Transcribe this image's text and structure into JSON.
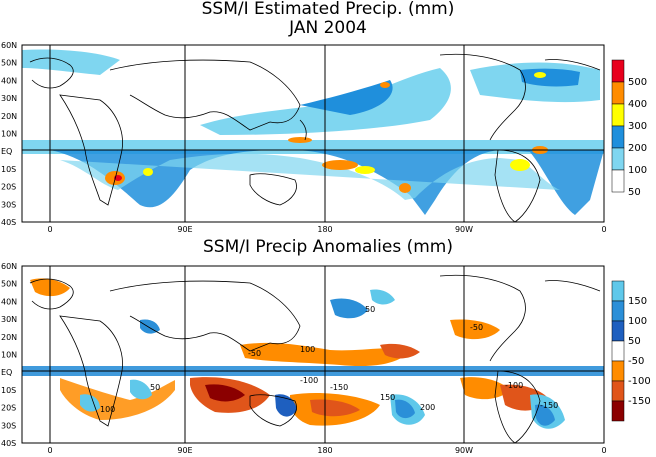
{
  "top_panel": {
    "title_line1": "SSM/I Estimated Precip. (mm)",
    "title_line2": "JAN 2004",
    "lat_labels": [
      "60N",
      "50N",
      "40N",
      "30N",
      "20N",
      "10N",
      "EQ",
      "10S",
      "20S",
      "30S",
      "40S"
    ],
    "lon_labels": [
      "0",
      "90E",
      "180",
      "90W",
      "0"
    ],
    "legend": {
      "labels": [
        "500",
        "400",
        "300",
        "200",
        "100",
        "50"
      ],
      "colors": [
        "#e8001c",
        "#ff8c00",
        "#ffff00",
        "#1f8fdc",
        "#7fd6f0",
        "#ffffff"
      ]
    }
  },
  "bottom_panel": {
    "title": "SSM/I Precip Anomalies (mm)",
    "lat_labels": [
      "60N",
      "50N",
      "40N",
      "30N",
      "20N",
      "10N",
      "EQ",
      "10S",
      "20S",
      "30S",
      "40S"
    ],
    "lon_labels": [
      "0",
      "90E",
      "180",
      "90W",
      "0"
    ],
    "legend": {
      "labels": [
        "150",
        "100",
        "50",
        "-50",
        "-100",
        "-150"
      ],
      "colors": [
        "#5fc8ea",
        "#2b8fd8",
        "#1e5fbf",
        "#ffffff",
        "#ff8c00",
        "#e0551a",
        "#8b0000"
      ]
    },
    "contour_labels": [
      "-50",
      "-100",
      "-150",
      "50",
      "100",
      "150",
      "200",
      "-50",
      "-100",
      "-150",
      "50",
      "100"
    ]
  }
}
